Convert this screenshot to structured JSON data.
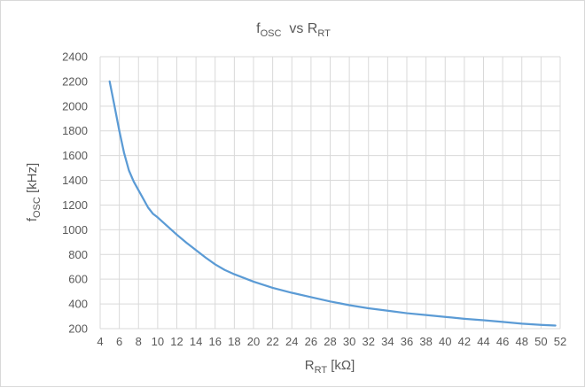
{
  "chart_data": {
    "type": "line",
    "title": {
      "main": "f",
      "main_sub": "OSC",
      "mid": "  vs R",
      "mid_sub": "RT"
    },
    "xlabel": {
      "main": "R",
      "sub": "RT",
      "tail": " [kΩ]"
    },
    "ylabel": {
      "main": "f",
      "sub": "OSC",
      "tail": " [kHz]"
    },
    "xlim": [
      4,
      52
    ],
    "ylim": [
      200,
      2400
    ],
    "x_ticks": [
      "4",
      "6",
      "8",
      "10",
      "12",
      "14",
      "16",
      "18",
      "20",
      "22",
      "24",
      "26",
      "28",
      "30",
      "32",
      "34",
      "36",
      "38",
      "40",
      "42",
      "44",
      "46",
      "48",
      "50",
      "52"
    ],
    "y_ticks": [
      "200",
      "400",
      "600",
      "800",
      "1000",
      "1200",
      "1400",
      "1600",
      "1800",
      "2000",
      "2200",
      "2400"
    ],
    "grid": true,
    "line_color": "#5b9bd5",
    "series": [
      {
        "x": [
          4.99,
          5.5,
          6,
          6.5,
          7,
          7.5,
          8,
          8.5,
          9,
          9.5,
          10,
          11,
          12,
          13,
          14,
          15,
          16,
          17,
          18,
          20,
          22,
          24,
          26,
          28,
          30,
          32,
          34,
          36,
          38,
          40,
          42,
          44,
          46,
          48,
          50,
          51.5
        ],
        "y": [
          2200,
          2000,
          1800,
          1620,
          1480,
          1390,
          1320,
          1250,
          1180,
          1130,
          1100,
          1030,
          960,
          895,
          835,
          775,
          720,
          675,
          640,
          580,
          530,
          490,
          455,
          420,
          390,
          365,
          345,
          325,
          310,
          295,
          280,
          268,
          255,
          240,
          230,
          225
        ]
      }
    ]
  }
}
